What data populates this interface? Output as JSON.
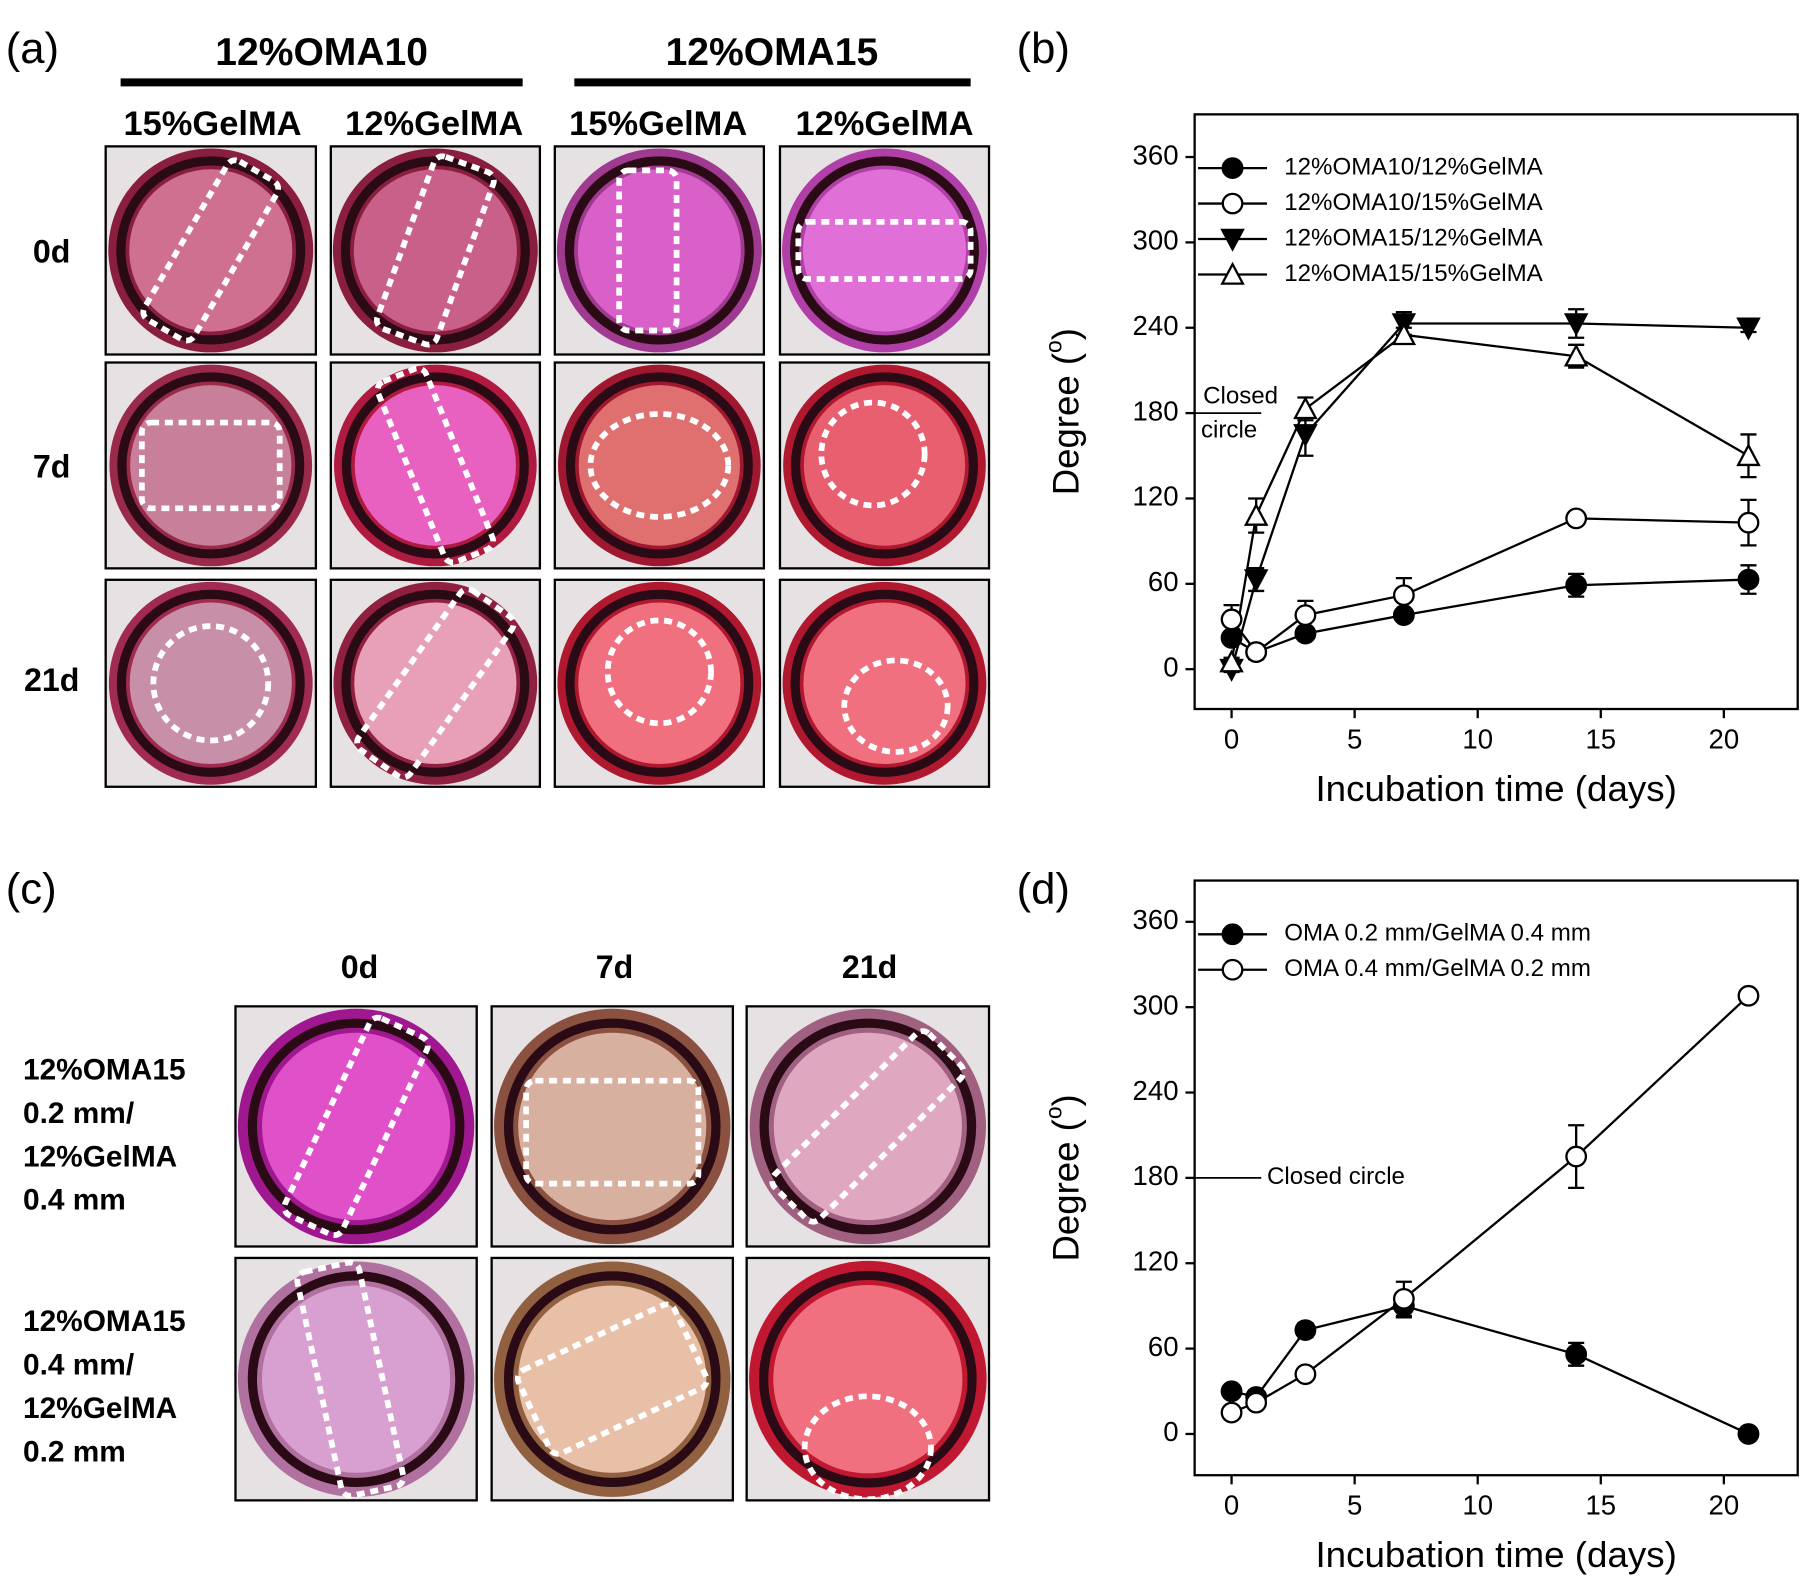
{
  "panel_labels": [
    "(a)",
    "(b)",
    "(c)",
    "(d)"
  ],
  "panel_a": {
    "groups": [
      "12%OMA10",
      "12%OMA15"
    ],
    "columns": [
      "15%GelMA",
      "12%GelMA",
      "15%GelMA",
      "12%GelMA"
    ],
    "rows": [
      "0d",
      "7d",
      "21d"
    ]
  },
  "panel_c": {
    "columns": [
      "0d",
      "7d",
      "21d"
    ],
    "rows": [
      [
        "12%OMA15",
        "0.2 mm/",
        "12%GelMA",
        "0.4 mm"
      ],
      [
        "12%OMA15",
        "0.4 mm/",
        "12%GelMA",
        "0.2 mm"
      ]
    ]
  },
  "chart_data": [
    {
      "type": "line",
      "x": [
        0,
        1,
        3,
        7,
        14,
        21
      ],
      "xlim": [
        -1.5,
        23
      ],
      "ylim": [
        -28,
        390
      ],
      "xticks": [
        0,
        5,
        10,
        15,
        20
      ],
      "yticks": [
        0,
        60,
        120,
        180,
        240,
        300,
        360
      ],
      "xlabel": "Incubation time (days)",
      "ylabel": [
        "Degree (",
        "o",
        ")"
      ],
      "legend": "upper left",
      "annotation": {
        "text": [
          "Closed",
          "circle"
        ],
        "y": 180
      },
      "series": [
        {
          "name": "12%OMA10/12%GelMA",
          "color": "#000000",
          "marker": "circle",
          "marker_fill": "#000000",
          "values": [
            22,
            12,
            25,
            38,
            59,
            63
          ],
          "errors": [
            3,
            3,
            4,
            4,
            8,
            10
          ]
        },
        {
          "name": "12%OMA10/15%GelMA",
          "color": "#000000",
          "marker": "circle",
          "marker_fill": "#ffffff",
          "values": [
            35,
            12,
            38,
            52,
            106,
            103
          ],
          "errors": [
            10,
            5,
            10,
            12,
            4,
            16
          ]
        },
        {
          "name": "12%OMA15/12%GelMA",
          "color": "#000000",
          "marker": "triangle-down",
          "marker_fill": "#000000",
          "values": [
            0,
            63,
            165,
            243,
            243,
            240
          ],
          "errors": [
            2,
            8,
            15,
            8,
            10,
            3
          ]
        },
        {
          "name": "12%OMA15/15%GelMA",
          "color": "#000000",
          "marker": "triangle-up",
          "marker_fill": "#ffffff",
          "values": [
            5,
            108,
            183,
            235,
            220,
            150
          ],
          "errors": [
            3,
            12,
            8,
            5,
            8,
            15
          ]
        }
      ]
    },
    {
      "type": "line",
      "x": [
        0,
        1,
        3,
        7,
        14,
        21
      ],
      "xlim": [
        -1.5,
        23
      ],
      "ylim": [
        -29,
        389
      ],
      "xticks": [
        0,
        5,
        10,
        15,
        20
      ],
      "yticks": [
        0,
        60,
        120,
        180,
        240,
        300,
        360
      ],
      "xlabel": "Incubation time (days)",
      "ylabel": [
        "Degree (",
        "o",
        ")"
      ],
      "legend": "upper left",
      "annotation": {
        "text": [
          "Closed circle"
        ],
        "y": 180
      },
      "series": [
        {
          "name": "OMA 0.2 mm/GelMA 0.4 mm",
          "color": "#000000",
          "marker": "circle",
          "marker_fill": "#000000",
          "values": [
            30,
            26,
            73,
            90,
            56,
            0
          ],
          "errors": [
            2,
            2,
            5,
            8,
            8,
            2
          ]
        },
        {
          "name": "OMA 0.4 mm/GelMA 0.2 mm",
          "color": "#000000",
          "marker": "circle",
          "marker_fill": "#ffffff",
          "values": [
            15,
            22,
            42,
            95,
            195,
            308
          ],
          "errors": [
            2,
            2,
            3,
            12,
            22,
            3
          ]
        }
      ]
    }
  ]
}
